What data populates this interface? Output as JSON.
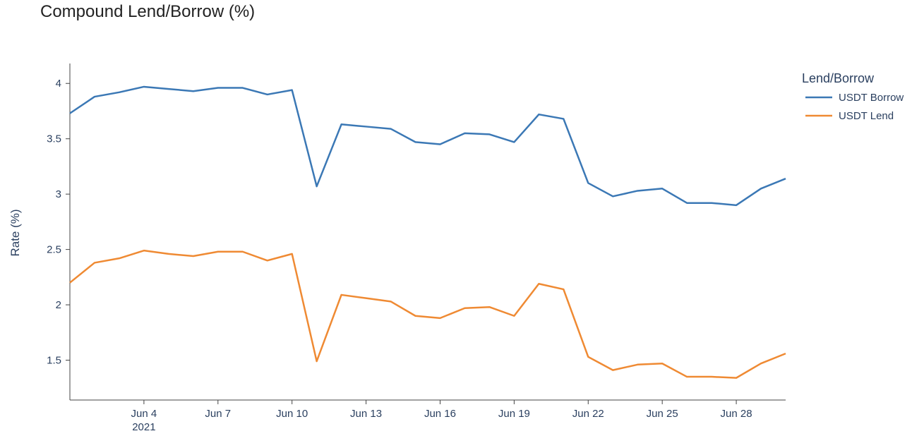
{
  "chart_data": {
    "type": "line",
    "title": "Compound Lend/Borrow (%)",
    "y_label": "Rate (%)",
    "legend_title": "Lend/Borrow",
    "legend_position": "right",
    "grid": false,
    "x": [
      "2021-06-01",
      "2021-06-02",
      "2021-06-03",
      "2021-06-04",
      "2021-06-05",
      "2021-06-06",
      "2021-06-07",
      "2021-06-08",
      "2021-06-09",
      "2021-06-10",
      "2021-06-11",
      "2021-06-12",
      "2021-06-13",
      "2021-06-14",
      "2021-06-15",
      "2021-06-16",
      "2021-06-17",
      "2021-06-18",
      "2021-06-19",
      "2021-06-20",
      "2021-06-21",
      "2021-06-22",
      "2021-06-23",
      "2021-06-24",
      "2021-06-25",
      "2021-06-26",
      "2021-06-27",
      "2021-06-28",
      "2021-06-29",
      "2021-06-30"
    ],
    "series": [
      {
        "name": "USDT Borrow",
        "color": "#3b78b5",
        "values": [
          3.73,
          3.88,
          3.92,
          3.97,
          3.95,
          3.93,
          3.96,
          3.96,
          3.9,
          3.94,
          3.07,
          3.63,
          3.61,
          3.59,
          3.47,
          3.45,
          3.55,
          3.54,
          3.47,
          3.72,
          3.68,
          3.1,
          2.98,
          3.03,
          3.05,
          2.92,
          2.92,
          2.9,
          3.05,
          3.14
        ]
      },
      {
        "name": "USDT Lend",
        "color": "#ef8a33",
        "values": [
          2.2,
          2.38,
          2.42,
          2.49,
          2.46,
          2.44,
          2.48,
          2.48,
          2.4,
          2.46,
          1.49,
          2.09,
          2.06,
          2.03,
          1.9,
          1.88,
          1.97,
          1.98,
          1.9,
          2.19,
          2.14,
          1.53,
          1.41,
          1.46,
          1.47,
          1.35,
          1.35,
          1.34,
          1.47,
          1.56
        ]
      }
    ],
    "xlim": [
      "2021-06-01",
      "2021-06-30"
    ],
    "xticks": [
      {
        "value": "2021-06-04",
        "label": "Jun 4\n2021"
      },
      {
        "value": "2021-06-07",
        "label": "Jun 7"
      },
      {
        "value": "2021-06-10",
        "label": "Jun 10"
      },
      {
        "value": "2021-06-13",
        "label": "Jun 13"
      },
      {
        "value": "2021-06-16",
        "label": "Jun 16"
      },
      {
        "value": "2021-06-19",
        "label": "Jun 19"
      },
      {
        "value": "2021-06-22",
        "label": "Jun 22"
      },
      {
        "value": "2021-06-25",
        "label": "Jun 25"
      },
      {
        "value": "2021-06-28",
        "label": "Jun 28"
      }
    ],
    "ylim": [
      1.14,
      4.18
    ],
    "yticks": [
      1.5,
      2,
      2.5,
      3,
      3.5,
      4
    ]
  }
}
